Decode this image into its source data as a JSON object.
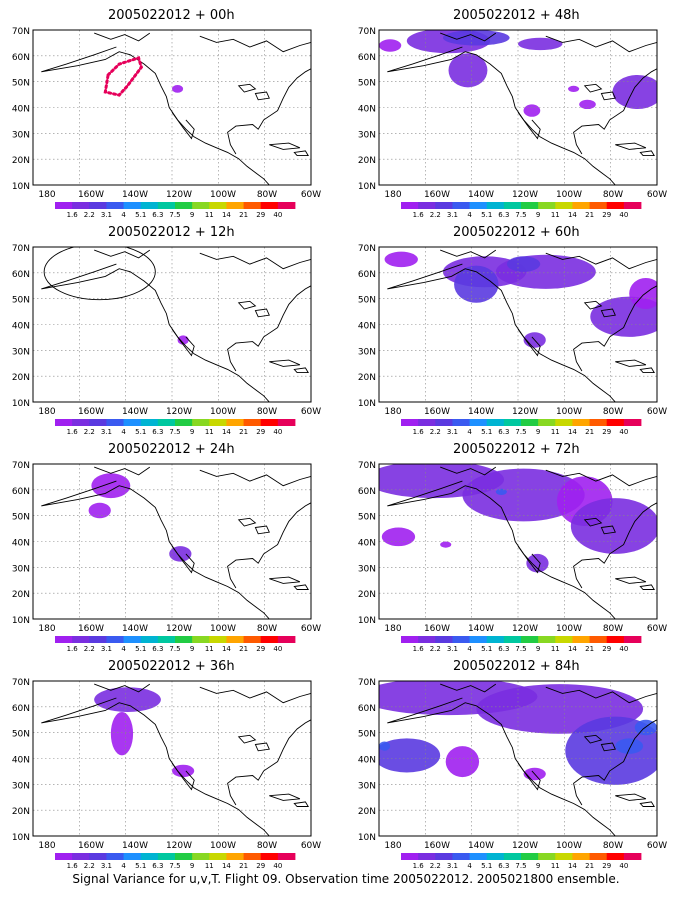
{
  "panels": [
    {
      "title": "2005022012 + 00h"
    },
    {
      "title": "2005022012 + 12h"
    },
    {
      "title": "2005022012 + 24h"
    },
    {
      "title": "2005022012 + 36h"
    },
    {
      "title": "2005022012 + 48h"
    },
    {
      "title": "2005022012 + 60h"
    },
    {
      "title": "2005022012 + 72h"
    },
    {
      "title": "2005022012 + 84h"
    }
  ],
  "axes": {
    "lat_labels": [
      "70N",
      "60N",
      "50N",
      "40N",
      "30N",
      "20N",
      "10N"
    ],
    "lon_labels": [
      "180",
      "160W",
      "140W",
      "120W",
      "100W",
      "80W",
      "60W"
    ]
  },
  "colorbar": {
    "labels": [
      "1.6",
      "2.2",
      "3.1",
      "4",
      "5.1",
      "6.3",
      "7.5",
      "9",
      "11",
      "14",
      "21",
      "29",
      "40"
    ],
    "colors": [
      "#a020f0",
      "#7a2ee0",
      "#5a3ae0",
      "#3a5af0",
      "#1e90ff",
      "#00b4d2",
      "#00c8a0",
      "#22cc44",
      "#88d822",
      "#c8d800",
      "#ffa500",
      "#ff5a00",
      "#ff0000",
      "#e6005a"
    ]
  },
  "field_colors": {
    "light": "#a020f0",
    "medium": "#7a2ee0",
    "strong": "#5a3ae0",
    "peak": "#3a5af0"
  },
  "footer": "Signal Variance for u,v,T. Flight 09. Observation time 2005022012. 2005021800 ensemble."
}
